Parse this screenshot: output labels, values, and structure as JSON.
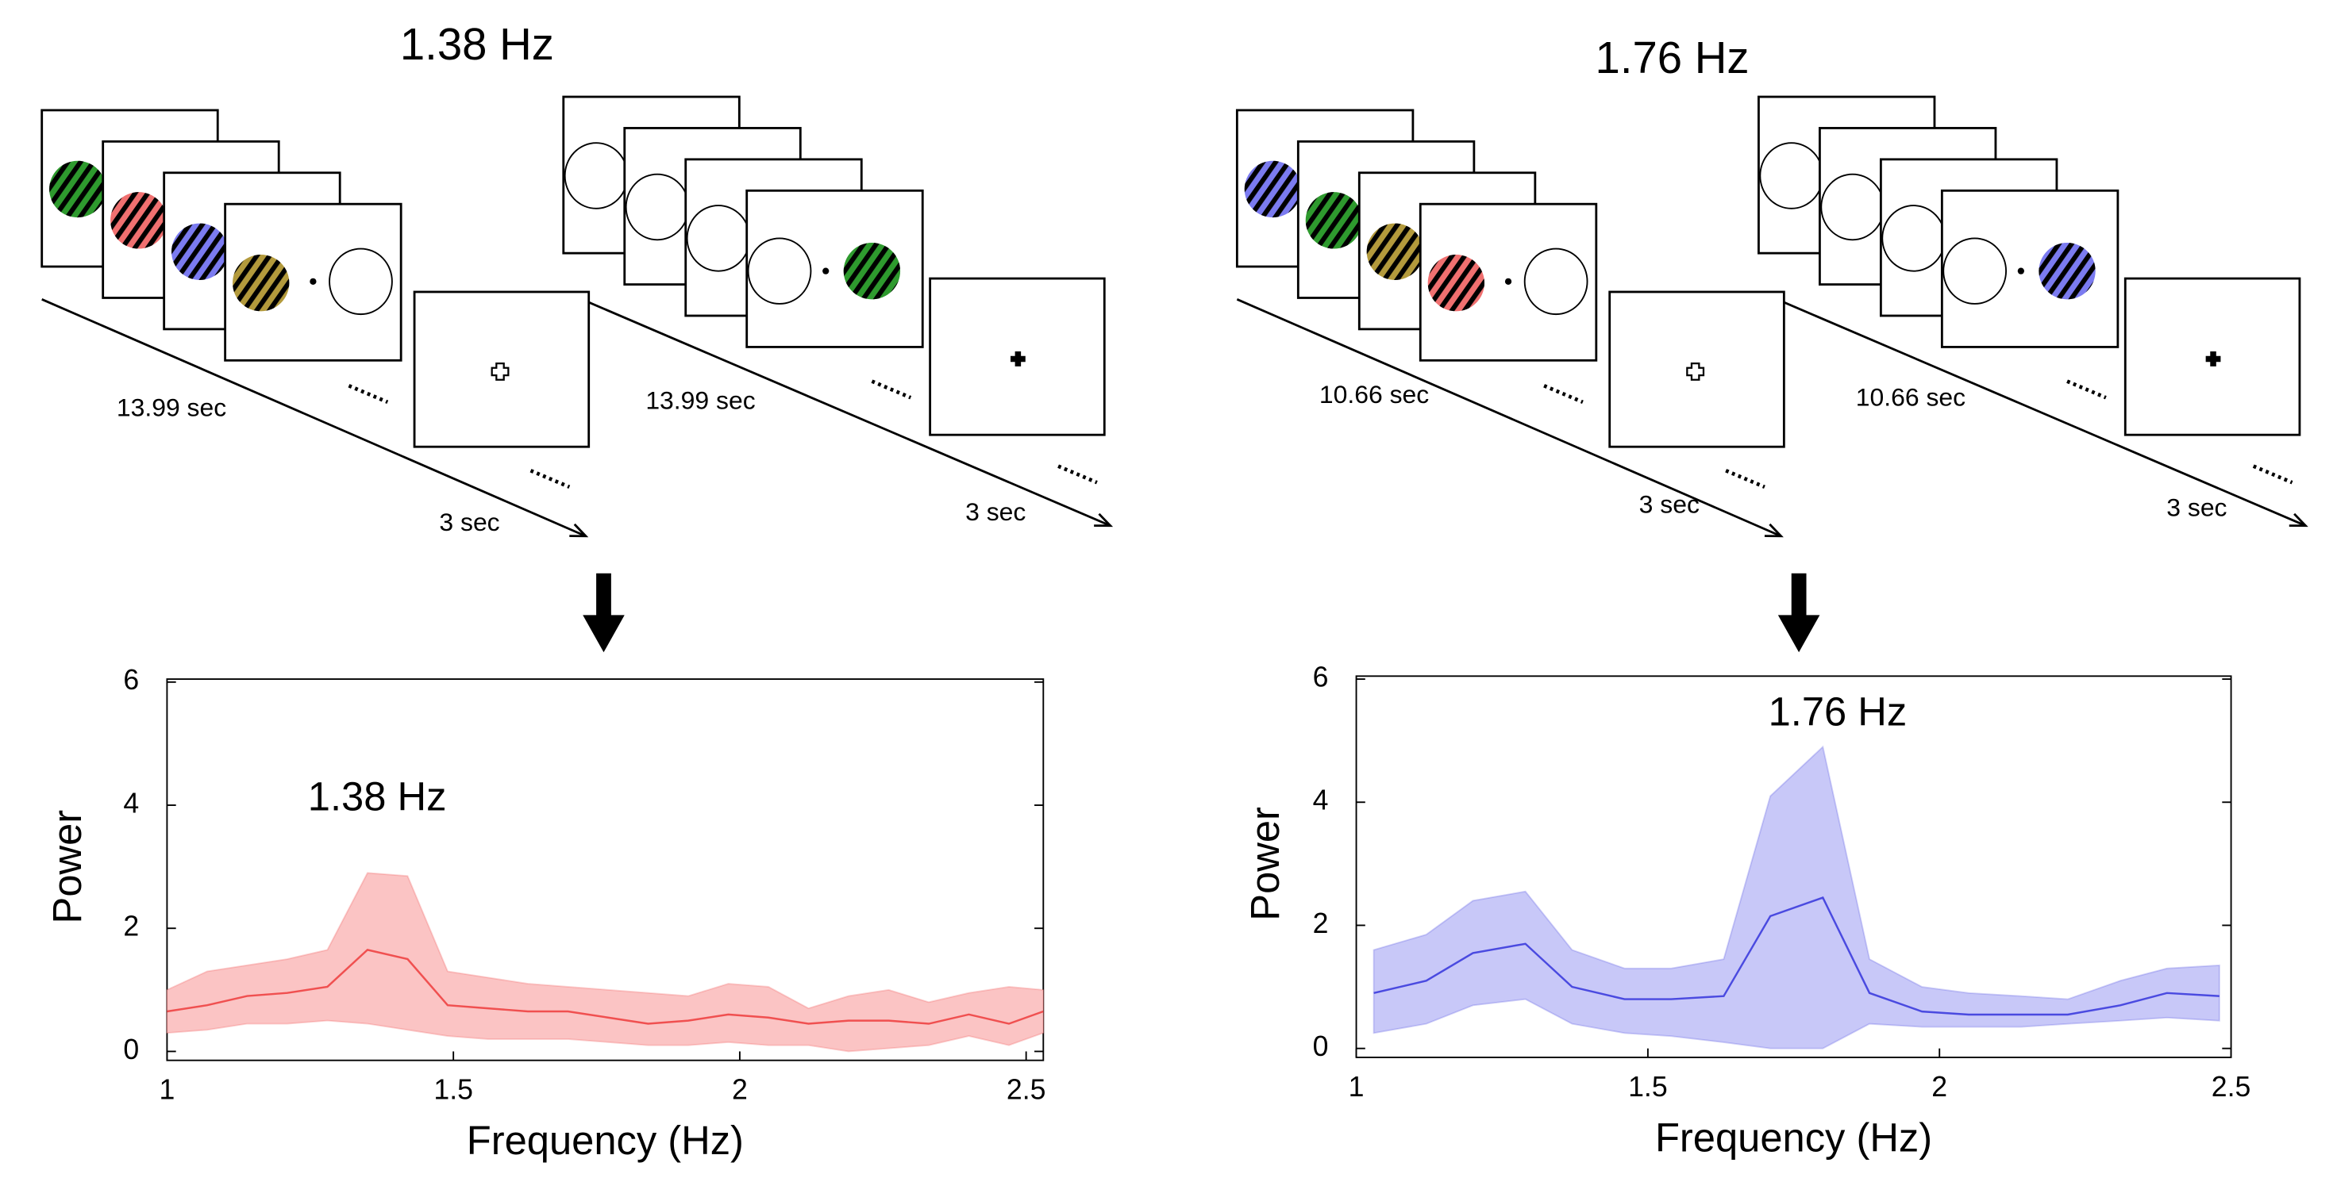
{
  "diagrams": [
    {
      "title": "1.38 Hz",
      "labels": [
        "13.99 sec",
        "3 sec",
        "13.99 sec",
        "3 sec"
      ]
    },
    {
      "title": "1.76 Hz",
      "labels": [
        "10.66 sec",
        "3 sec",
        "10.66 sec",
        "3 sec"
      ]
    }
  ],
  "chart_data": [
    {
      "type": "line",
      "annotation": "1.38 Hz",
      "xlabel": "Frequency (Hz)",
      "ylabel": "Power",
      "x": [
        1.0,
        1.07,
        1.14,
        1.21,
        1.28,
        1.35,
        1.42,
        1.49,
        1.56,
        1.63,
        1.7,
        1.77,
        1.84,
        1.91,
        1.98,
        2.05,
        2.12,
        2.19,
        2.26,
        2.33,
        2.4,
        2.47,
        2.53
      ],
      "series": [
        {
          "color": "#f05050",
          "band_color": "#fbc4c4",
          "values": [
            0.65,
            0.75,
            0.9,
            0.95,
            1.05,
            1.65,
            1.5,
            0.75,
            0.7,
            0.65,
            0.65,
            0.55,
            0.45,
            0.5,
            0.6,
            0.55,
            0.45,
            0.5,
            0.5,
            0.45,
            0.6,
            0.45,
            0.65
          ],
          "upper": [
            1.0,
            1.3,
            1.4,
            1.5,
            1.65,
            2.9,
            2.85,
            1.3,
            1.2,
            1.1,
            1.05,
            1.0,
            0.95,
            0.9,
            1.1,
            1.05,
            0.7,
            0.9,
            1.0,
            0.8,
            0.95,
            1.05,
            1.0
          ],
          "lower": [
            0.3,
            0.35,
            0.45,
            0.45,
            0.5,
            0.45,
            0.35,
            0.25,
            0.2,
            0.2,
            0.2,
            0.15,
            0.1,
            0.1,
            0.15,
            0.1,
            0.1,
            0.0,
            0.05,
            0.1,
            0.25,
            0.1,
            0.3
          ]
        }
      ],
      "xlim": [
        1,
        2.53
      ],
      "xticks": [
        1,
        1.5,
        2,
        2.5
      ],
      "ylim": [
        0,
        6
      ],
      "yticks": [
        0,
        2,
        4,
        6
      ]
    },
    {
      "type": "line",
      "annotation": "1.76 Hz",
      "xlabel": "Frequency (Hz)",
      "ylabel": "Power",
      "x": [
        1.03,
        1.12,
        1.2,
        1.29,
        1.37,
        1.46,
        1.54,
        1.63,
        1.71,
        1.8,
        1.88,
        1.97,
        2.05,
        2.14,
        2.22,
        2.31,
        2.39,
        2.48
      ],
      "series": [
        {
          "color": "#4a4ae0",
          "band_color": "#c8c8f8",
          "values": [
            0.9,
            1.1,
            1.55,
            1.7,
            1.0,
            0.8,
            0.8,
            0.85,
            2.15,
            2.45,
            0.9,
            0.6,
            0.55,
            0.55,
            0.55,
            0.7,
            0.9,
            0.85
          ],
          "upper": [
            1.6,
            1.85,
            2.4,
            2.55,
            1.6,
            1.3,
            1.3,
            1.45,
            4.1,
            4.9,
            1.45,
            1.0,
            0.9,
            0.85,
            0.8,
            1.1,
            1.3,
            1.35
          ],
          "lower": [
            0.25,
            0.4,
            0.7,
            0.8,
            0.4,
            0.25,
            0.2,
            0.1,
            0.0,
            0.0,
            0.4,
            0.35,
            0.35,
            0.35,
            0.4,
            0.45,
            0.5,
            0.45
          ]
        }
      ],
      "xlim": [
        1,
        2.5
      ],
      "xticks": [
        1,
        1.5,
        2,
        2.5
      ],
      "ylim": [
        0,
        6
      ],
      "yticks": [
        0,
        2,
        4,
        6
      ]
    }
  ]
}
